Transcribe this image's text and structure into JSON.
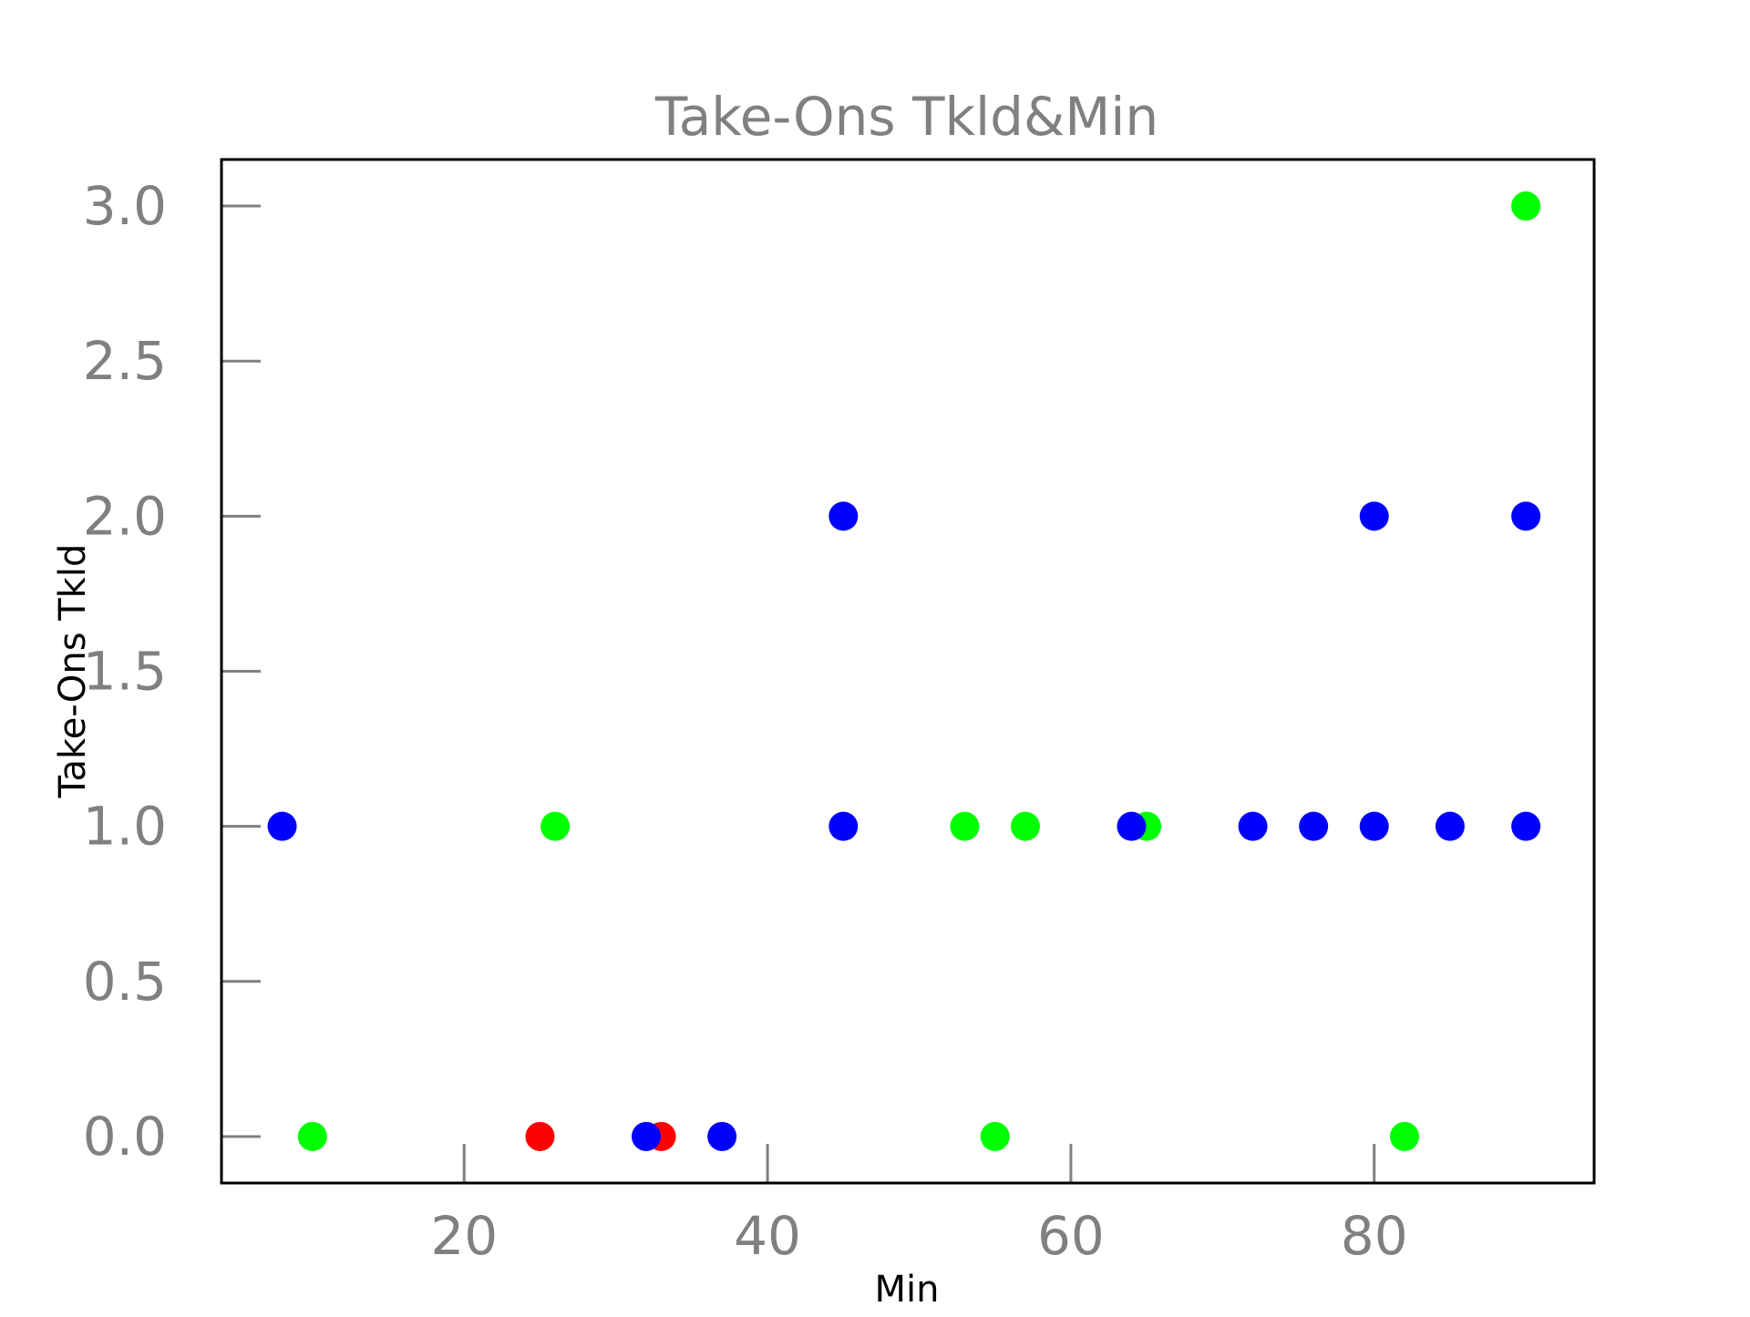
{
  "chart_data": {
    "type": "scatter",
    "title": "Take-Ons Tkld&Min",
    "xlabel": "Min",
    "ylabel": "Take-Ons Tkld",
    "xlim": [
      4,
      94.5
    ],
    "ylim": [
      -0.15,
      3.15
    ],
    "xticks": [
      20,
      40,
      60,
      80
    ],
    "yticks": [
      0.0,
      0.5,
      1.0,
      1.5,
      2.0,
      2.5,
      3.0
    ],
    "xtick_labels": [
      "20",
      "40",
      "60",
      "80"
    ],
    "ytick_labels": [
      "0.0",
      "0.5",
      "1.0",
      "1.5",
      "2.0",
      "2.5",
      "3.0"
    ],
    "grid": false,
    "legend": "none",
    "colors": {
      "red": "#ff0000",
      "green": "#00ff00",
      "blue": "#0000ff",
      "text": "#808080"
    },
    "points": [
      {
        "x": 8,
        "y": 1,
        "color": "#0000ff"
      },
      {
        "x": 10,
        "y": 0,
        "color": "#00ff00"
      },
      {
        "x": 25,
        "y": 0,
        "color": "#ff0000"
      },
      {
        "x": 26,
        "y": 1,
        "color": "#00ff00"
      },
      {
        "x": 33,
        "y": 0,
        "color": "#ff0000"
      },
      {
        "x": 32,
        "y": 0,
        "color": "#0000ff"
      },
      {
        "x": 37,
        "y": 0,
        "color": "#0000ff"
      },
      {
        "x": 45,
        "y": 2,
        "color": "#0000ff"
      },
      {
        "x": 45,
        "y": 1,
        "color": "#0000ff"
      },
      {
        "x": 53,
        "y": 1,
        "color": "#00ff00"
      },
      {
        "x": 55,
        "y": 0,
        "color": "#00ff00"
      },
      {
        "x": 57,
        "y": 1,
        "color": "#00ff00"
      },
      {
        "x": 65,
        "y": 1,
        "color": "#00ff00"
      },
      {
        "x": 64,
        "y": 1,
        "color": "#0000ff"
      },
      {
        "x": 72,
        "y": 1,
        "color": "#0000ff"
      },
      {
        "x": 76,
        "y": 1,
        "color": "#0000ff"
      },
      {
        "x": 80,
        "y": 2,
        "color": "#0000ff"
      },
      {
        "x": 80,
        "y": 1,
        "color": "#0000ff"
      },
      {
        "x": 82,
        "y": 0,
        "color": "#00ff00"
      },
      {
        "x": 85,
        "y": 1,
        "color": "#0000ff"
      },
      {
        "x": 90,
        "y": 3,
        "color": "#00ff00"
      },
      {
        "x": 90,
        "y": 2,
        "color": "#0000ff"
      },
      {
        "x": 90,
        "y": 1,
        "color": "#0000ff"
      }
    ]
  }
}
